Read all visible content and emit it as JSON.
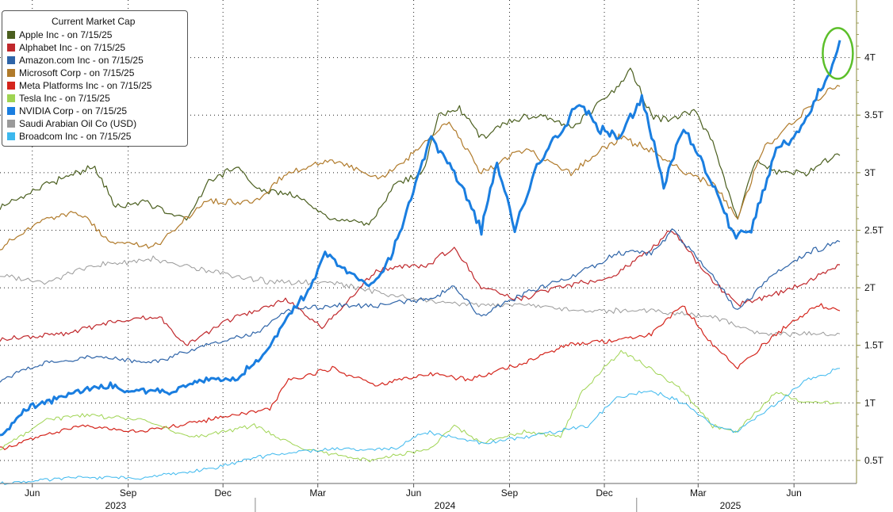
{
  "chart_data": {
    "type": "line",
    "legend": {
      "title": "Current Market Cap",
      "entries": [
        {
          "label": "Apple Inc -  on 7/15/25",
          "color": "#4a5e1e"
        },
        {
          "label": "Alphabet Inc -  on 7/15/25",
          "color": "#c0282c"
        },
        {
          "label": "Amazon.com Inc -  on 7/15/25",
          "color": "#2e64a8"
        },
        {
          "label": "Microsoft Corp -  on 7/15/25",
          "color": "#b07a2a"
        },
        {
          "label": "Meta Platforms Inc -  on 7/15/25",
          "color": "#d4251c"
        },
        {
          "label": "Tesla Inc -  on 7/15/25",
          "color": "#9fd452"
        },
        {
          "label": "NVIDIA Corp -  on 7/15/25",
          "color": "#1a7ee0"
        },
        {
          "label": "Saudi Arabian Oil Co (USD)",
          "color": "#9a9a9a"
        },
        {
          "label": "Broadcom Inc -  on 7/15/25",
          "color": "#3cb8ee"
        }
      ]
    },
    "y_axis": {
      "ticks": [
        {
          "value": 0.5,
          "label": "0.5T"
        },
        {
          "value": 1,
          "label": "1T"
        },
        {
          "value": 1.5,
          "label": "1.5T"
        },
        {
          "value": 2,
          "label": "2T"
        },
        {
          "value": 2.5,
          "label": "2.5T"
        },
        {
          "value": 3,
          "label": "3T"
        },
        {
          "value": 3.5,
          "label": "3.5T"
        },
        {
          "value": 4,
          "label": "4T"
        }
      ],
      "range": [
        0.3,
        4.5
      ],
      "position": "right"
    },
    "x_axis": {
      "range": [
        "2023-05-01",
        "2025-07-31"
      ],
      "month_ticks": [
        {
          "date": "2023-06-01",
          "label": "Jun"
        },
        {
          "date": "2023-09-01",
          "label": "Sep"
        },
        {
          "date": "2023-12-01",
          "label": "Dec"
        },
        {
          "date": "2024-03-01",
          "label": "Mar"
        },
        {
          "date": "2024-06-01",
          "label": "Jun"
        },
        {
          "date": "2024-09-01",
          "label": "Sep"
        },
        {
          "date": "2024-12-01",
          "label": "Dec"
        },
        {
          "date": "2025-03-01",
          "label": "Mar"
        },
        {
          "date": "2025-06-01",
          "label": "Jun"
        }
      ],
      "year_labels": [
        {
          "date": "2023-08-20",
          "label": "2023"
        },
        {
          "date": "2024-07-01",
          "label": "2024"
        },
        {
          "date": "2025-04-01",
          "label": "2025"
        }
      ],
      "year_separators": [
        "2024-01-01",
        "2025-01-01"
      ]
    },
    "grid": true,
    "series": [
      {
        "name": "Apple Inc -  on 7/15/25",
        "color": "#4a5e1e",
        "width": 1.2,
        "points": [
          [
            "2023-05-01",
            2.7
          ],
          [
            "2023-06-15",
            2.9
          ],
          [
            "2023-07-31",
            3.05
          ],
          [
            "2023-08-20",
            2.7
          ],
          [
            "2023-09-15",
            2.75
          ],
          [
            "2023-10-27",
            2.6
          ],
          [
            "2023-11-15",
            2.9
          ],
          [
            "2023-12-14",
            3.05
          ],
          [
            "2024-01-05",
            2.85
          ],
          [
            "2024-02-10",
            2.8
          ],
          [
            "2024-03-15",
            2.6
          ],
          [
            "2024-04-19",
            2.55
          ],
          [
            "2024-05-15",
            2.9
          ],
          [
            "2024-06-10",
            3.0
          ],
          [
            "2024-06-25",
            3.5
          ],
          [
            "2024-07-15",
            3.55
          ],
          [
            "2024-08-05",
            3.3
          ],
          [
            "2024-09-01",
            3.45
          ],
          [
            "2024-10-01",
            3.5
          ],
          [
            "2024-11-01",
            3.4
          ],
          [
            "2024-12-15",
            3.75
          ],
          [
            "2024-12-26",
            3.9
          ],
          [
            "2025-01-15",
            3.5
          ],
          [
            "2025-02-05",
            3.45
          ],
          [
            "2025-02-25",
            3.55
          ],
          [
            "2025-03-15",
            3.25
          ],
          [
            "2025-04-08",
            2.6
          ],
          [
            "2025-04-25",
            3.1
          ],
          [
            "2025-05-20",
            3.0
          ],
          [
            "2025-06-15",
            3.0
          ],
          [
            "2025-07-01",
            3.1
          ],
          [
            "2025-07-15",
            3.15
          ]
        ]
      },
      {
        "name": "Microsoft Corp -  on 7/15/25",
        "color": "#b07a2a",
        "width": 1.2,
        "points": [
          [
            "2023-05-01",
            2.35
          ],
          [
            "2023-06-15",
            2.6
          ],
          [
            "2023-07-15",
            2.65
          ],
          [
            "2023-08-15",
            2.4
          ],
          [
            "2023-09-25",
            2.35
          ],
          [
            "2023-11-15",
            2.75
          ],
          [
            "2024-01-05",
            2.75
          ],
          [
            "2024-01-31",
            3.0
          ],
          [
            "2024-03-15",
            3.1
          ],
          [
            "2024-04-30",
            2.95
          ],
          [
            "2024-06-05",
            3.2
          ],
          [
            "2024-07-05",
            3.45
          ],
          [
            "2024-08-05",
            3.0
          ],
          [
            "2024-09-15",
            3.2
          ],
          [
            "2024-10-30",
            3.0
          ],
          [
            "2024-12-15",
            3.3
          ],
          [
            "2025-01-15",
            3.2
          ],
          [
            "2025-02-15",
            3.0
          ],
          [
            "2025-03-15",
            2.9
          ],
          [
            "2025-04-08",
            2.6
          ],
          [
            "2025-05-02",
            3.2
          ],
          [
            "2025-06-01",
            3.45
          ],
          [
            "2025-07-01",
            3.7
          ],
          [
            "2025-07-15",
            3.75
          ]
        ]
      },
      {
        "name": "Saudi Arabian Oil Co (USD)",
        "color": "#9a9a9a",
        "width": 1.0,
        "points": [
          [
            "2023-05-01",
            2.1
          ],
          [
            "2023-06-15",
            2.05
          ],
          [
            "2023-08-01",
            2.2
          ],
          [
            "2023-09-25",
            2.25
          ],
          [
            "2023-11-15",
            2.15
          ],
          [
            "2024-01-15",
            2.05
          ],
          [
            "2024-03-15",
            2.05
          ],
          [
            "2024-05-01",
            1.95
          ],
          [
            "2024-07-15",
            1.85
          ],
          [
            "2024-09-15",
            1.85
          ],
          [
            "2024-11-15",
            1.8
          ],
          [
            "2025-01-15",
            1.8
          ],
          [
            "2025-03-15",
            1.75
          ],
          [
            "2025-05-01",
            1.6
          ],
          [
            "2025-07-15",
            1.6
          ]
        ]
      },
      {
        "name": "Alphabet Inc -  on 7/15/25",
        "color": "#c0282c",
        "width": 1.2,
        "points": [
          [
            "2023-05-01",
            1.55
          ],
          [
            "2023-07-01",
            1.6
          ],
          [
            "2023-08-15",
            1.7
          ],
          [
            "2023-10-01",
            1.75
          ],
          [
            "2023-10-26",
            1.5
          ],
          [
            "2023-12-01",
            1.7
          ],
          [
            "2024-01-30",
            1.9
          ],
          [
            "2024-03-05",
            1.65
          ],
          [
            "2024-04-26",
            2.15
          ],
          [
            "2024-06-15",
            2.2
          ],
          [
            "2024-07-10",
            2.35
          ],
          [
            "2024-08-05",
            2.0
          ],
          [
            "2024-09-10",
            1.9
          ],
          [
            "2024-10-15",
            2.0
          ],
          [
            "2024-12-10",
            2.1
          ],
          [
            "2025-01-15",
            2.35
          ],
          [
            "2025-02-04",
            2.5
          ],
          [
            "2025-03-15",
            2.05
          ],
          [
            "2025-04-08",
            1.85
          ],
          [
            "2025-05-15",
            1.95
          ],
          [
            "2025-06-15",
            2.05
          ],
          [
            "2025-07-15",
            2.2
          ]
        ]
      },
      {
        "name": "Amazon.com Inc -  on 7/15/25",
        "color": "#2e64a8",
        "width": 1.2,
        "points": [
          [
            "2023-05-01",
            1.2
          ],
          [
            "2023-06-15",
            1.35
          ],
          [
            "2023-08-04",
            1.4
          ],
          [
            "2023-09-25",
            1.35
          ],
          [
            "2023-11-15",
            1.5
          ],
          [
            "2024-01-01",
            1.6
          ],
          [
            "2024-02-02",
            1.8
          ],
          [
            "2024-03-15",
            1.85
          ],
          [
            "2024-04-30",
            1.85
          ],
          [
            "2024-06-15",
            1.9
          ],
          [
            "2024-07-10",
            2.0
          ],
          [
            "2024-08-05",
            1.75
          ],
          [
            "2024-09-15",
            1.95
          ],
          [
            "2024-11-01",
            2.1
          ],
          [
            "2024-12-15",
            2.3
          ],
          [
            "2025-01-15",
            2.3
          ],
          [
            "2025-02-04",
            2.5
          ],
          [
            "2025-03-15",
            2.1
          ],
          [
            "2025-04-08",
            1.8
          ],
          [
            "2025-05-15",
            2.15
          ],
          [
            "2025-06-15",
            2.3
          ],
          [
            "2025-07-15",
            2.4
          ]
        ]
      },
      {
        "name": "Meta Platforms Inc -  on 7/15/25",
        "color": "#d4251c",
        "width": 1.2,
        "points": [
          [
            "2023-05-01",
            0.6
          ],
          [
            "2023-07-15",
            0.8
          ],
          [
            "2023-09-15",
            0.75
          ],
          [
            "2023-11-15",
            0.85
          ],
          [
            "2024-01-15",
            0.95
          ],
          [
            "2024-02-02",
            1.2
          ],
          [
            "2024-03-15",
            1.3
          ],
          [
            "2024-04-25",
            1.15
          ],
          [
            "2024-06-15",
            1.25
          ],
          [
            "2024-07-25",
            1.2
          ],
          [
            "2024-09-15",
            1.35
          ],
          [
            "2024-10-25",
            1.5
          ],
          [
            "2024-12-15",
            1.55
          ],
          [
            "2025-01-15",
            1.6
          ],
          [
            "2025-02-14",
            1.85
          ],
          [
            "2025-03-15",
            1.5
          ],
          [
            "2025-04-08",
            1.3
          ],
          [
            "2025-05-15",
            1.6
          ],
          [
            "2025-06-25",
            1.85
          ],
          [
            "2025-07-15",
            1.8
          ]
        ]
      },
      {
        "name": "Tesla Inc -  on 7/15/25",
        "color": "#9fd452",
        "width": 1.0,
        "points": [
          [
            "2023-05-01",
            0.6
          ],
          [
            "2023-06-15",
            0.85
          ],
          [
            "2023-07-19",
            0.9
          ],
          [
            "2023-09-15",
            0.85
          ],
          [
            "2023-11-01",
            0.7
          ],
          [
            "2023-12-31",
            0.8
          ],
          [
            "2024-02-15",
            0.6
          ],
          [
            "2024-04-20",
            0.5
          ],
          [
            "2024-06-15",
            0.6
          ],
          [
            "2024-07-10",
            0.8
          ],
          [
            "2024-08-05",
            0.65
          ],
          [
            "2024-09-15",
            0.75
          ],
          [
            "2024-10-20",
            0.7
          ],
          [
            "2024-11-10",
            1.1
          ],
          [
            "2024-12-17",
            1.45
          ],
          [
            "2025-01-15",
            1.3
          ],
          [
            "2025-02-15",
            1.1
          ],
          [
            "2025-03-15",
            0.8
          ],
          [
            "2025-04-08",
            0.75
          ],
          [
            "2025-05-15",
            1.1
          ],
          [
            "2025-06-10",
            1.0
          ],
          [
            "2025-07-15",
            1.0
          ]
        ]
      },
      {
        "name": "Broadcom Inc -  on 7/15/25",
        "color": "#3cb8ee",
        "width": 1.0,
        "points": [
          [
            "2023-05-01",
            0.3
          ],
          [
            "2023-07-15",
            0.35
          ],
          [
            "2023-09-15",
            0.35
          ],
          [
            "2023-11-15",
            0.42
          ],
          [
            "2024-01-15",
            0.55
          ],
          [
            "2024-03-15",
            0.6
          ],
          [
            "2024-05-15",
            0.6
          ],
          [
            "2024-06-12",
            0.75
          ],
          [
            "2024-08-05",
            0.65
          ],
          [
            "2024-09-15",
            0.7
          ],
          [
            "2024-11-15",
            0.8
          ],
          [
            "2024-12-13",
            1.05
          ],
          [
            "2025-01-15",
            1.1
          ],
          [
            "2025-02-15",
            1.0
          ],
          [
            "2025-03-15",
            0.8
          ],
          [
            "2025-04-08",
            0.75
          ],
          [
            "2025-05-15",
            1.0
          ],
          [
            "2025-06-15",
            1.2
          ],
          [
            "2025-07-15",
            1.3
          ]
        ]
      },
      {
        "name": "NVIDIA Corp -  on 7/15/25",
        "color": "#1a7ee0",
        "width": 3,
        "points": [
          [
            "2023-05-01",
            0.7
          ],
          [
            "2023-05-26",
            0.95
          ],
          [
            "2023-06-15",
            1.0
          ],
          [
            "2023-07-15",
            1.1
          ],
          [
            "2023-08-15",
            1.15
          ],
          [
            "2023-08-31",
            1.1
          ],
          [
            "2023-10-15",
            1.1
          ],
          [
            "2023-11-15",
            1.2
          ],
          [
            "2023-12-15",
            1.2
          ],
          [
            "2024-01-15",
            1.5
          ],
          [
            "2024-02-05",
            1.8
          ],
          [
            "2024-02-23",
            2.0
          ],
          [
            "2024-03-08",
            2.3
          ],
          [
            "2024-04-19",
            2.0
          ],
          [
            "2024-05-10",
            2.25
          ],
          [
            "2024-05-23",
            2.6
          ],
          [
            "2024-06-05",
            3.0
          ],
          [
            "2024-06-18",
            3.3
          ],
          [
            "2024-07-10",
            3.0
          ],
          [
            "2024-08-05",
            2.5
          ],
          [
            "2024-08-20",
            3.1
          ],
          [
            "2024-09-06",
            2.5
          ],
          [
            "2024-09-25",
            3.0
          ],
          [
            "2024-10-15",
            3.3
          ],
          [
            "2024-11-07",
            3.6
          ],
          [
            "2024-11-25",
            3.4
          ],
          [
            "2024-12-15",
            3.3
          ],
          [
            "2025-01-06",
            3.65
          ],
          [
            "2025-01-27",
            2.9
          ],
          [
            "2025-02-15",
            3.4
          ],
          [
            "2025-03-15",
            2.9
          ],
          [
            "2025-04-04",
            2.45
          ],
          [
            "2025-04-21",
            2.5
          ],
          [
            "2025-05-15",
            3.2
          ],
          [
            "2025-06-01",
            3.3
          ],
          [
            "2025-06-20",
            3.6
          ],
          [
            "2025-07-01",
            3.8
          ],
          [
            "2025-07-10",
            4.0
          ],
          [
            "2025-07-15",
            4.15
          ]
        ]
      }
    ],
    "annotation": {
      "shape": "ellipse",
      "color": "#5cbf2a",
      "date": "2025-07-10",
      "value": 4.05
    }
  }
}
